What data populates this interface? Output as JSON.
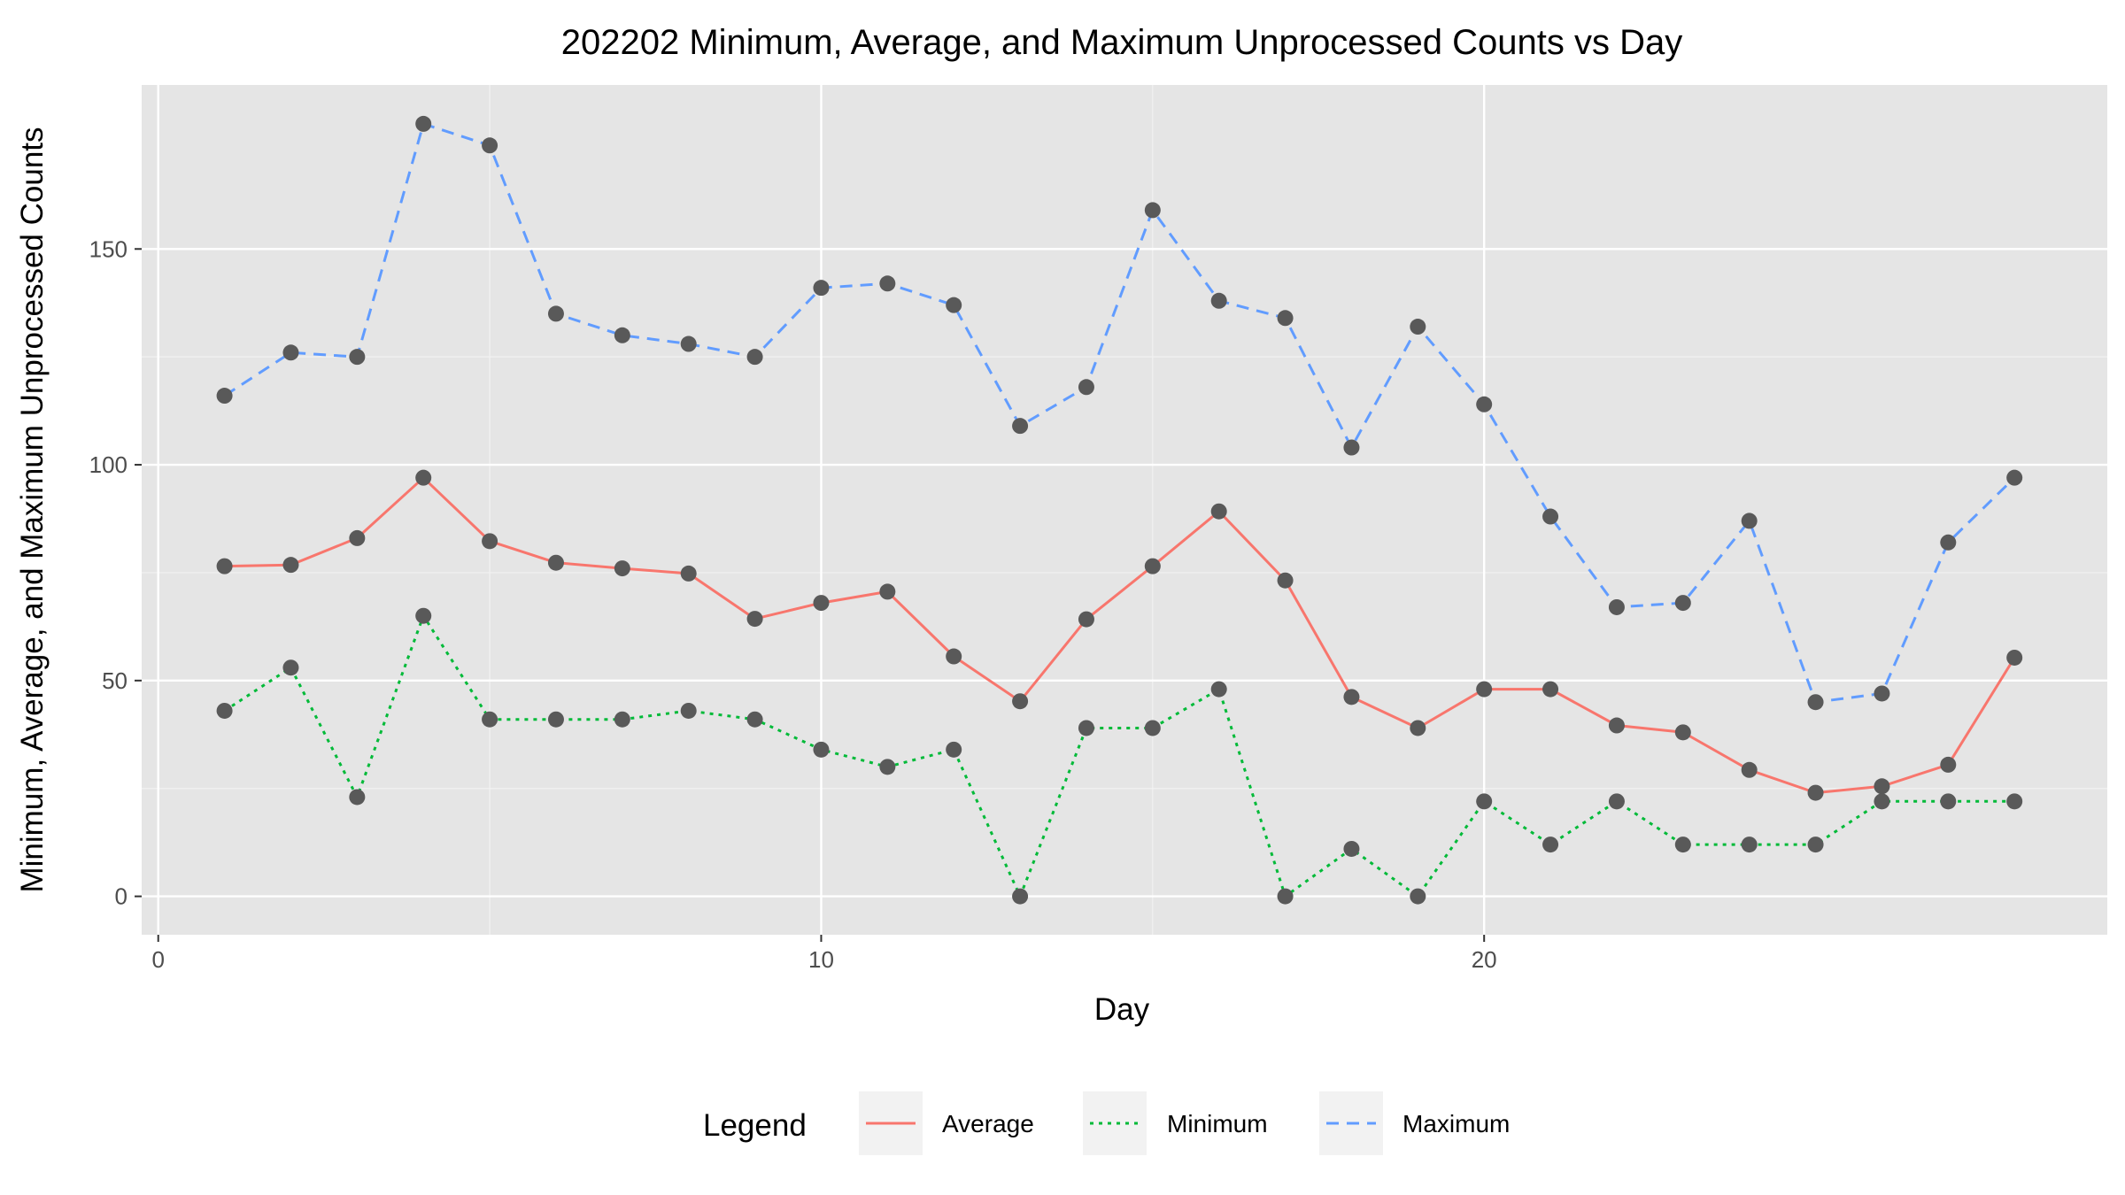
{
  "chart_data": {
    "type": "line",
    "title": "202202 Minimum, Average, and Maximum Unprocessed Counts vs Day",
    "xlabel": "Day",
    "ylabel": "Minimum, Average, and Maximum Unprocessed Counts",
    "xlim": [
      -0.25,
      29.4
    ],
    "ylim": [
      -8.9,
      188
    ],
    "x_ticks": [
      0,
      10,
      20
    ],
    "y_ticks": [
      0,
      50,
      100,
      150
    ],
    "x_tick_labels": [
      "0",
      "10",
      "20"
    ],
    "y_tick_labels": [
      "0",
      "50",
      "100",
      "150"
    ],
    "grid": true,
    "background": "#e5e5e5",
    "point_color": "#595959",
    "legend": {
      "title": "Legend",
      "position": "bottom"
    },
    "x": [
      1,
      2,
      3,
      4,
      5,
      6,
      7,
      8,
      9,
      10,
      11,
      12,
      13,
      14,
      15,
      16,
      17,
      18,
      19,
      20,
      21,
      22,
      23,
      24,
      25,
      26,
      27,
      28
    ],
    "series": [
      {
        "name": "Average",
        "color": "#f8766d",
        "dash": "solid",
        "values": [
          76.5,
          76.8,
          83,
          97,
          82.3,
          77.3,
          76,
          74.8,
          64.3,
          68,
          70.6,
          55.6,
          45.2,
          64.2,
          76.5,
          89.2,
          73.2,
          46.2,
          39,
          48,
          48,
          39.6,
          38,
          29.3,
          24,
          25.5,
          30.5,
          55.3
        ]
      },
      {
        "name": "Minimum",
        "color": "#00ba38",
        "dash": "dotted",
        "values": [
          43,
          53,
          23,
          65,
          41,
          41,
          41,
          43,
          41,
          34,
          30,
          34,
          0,
          39,
          39,
          48,
          0,
          11,
          0,
          22,
          12,
          22,
          12,
          12,
          12,
          22,
          22,
          22
        ]
      },
      {
        "name": "Maximum",
        "color": "#619cff",
        "dash": "dashed",
        "values": [
          116,
          126,
          125,
          179,
          174,
          135,
          130,
          128,
          125,
          141,
          142,
          137,
          109,
          118,
          159,
          138,
          134,
          104,
          132,
          114,
          88,
          67,
          68,
          87,
          45,
          47,
          82,
          97
        ]
      }
    ]
  }
}
